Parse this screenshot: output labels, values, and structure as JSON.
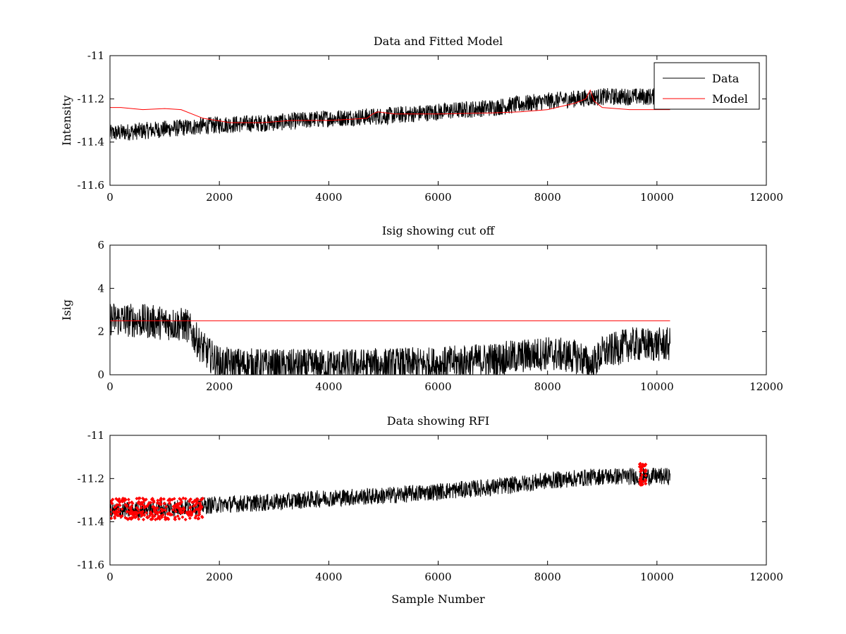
{
  "chart_data": [
    {
      "type": "line",
      "title": "Data and Fitted Model",
      "xlabel": "",
      "ylabel": "Intensity",
      "xlim": [
        0,
        12000
      ],
      "ylim": [
        -11.6,
        -11
      ],
      "xticks": [
        "0",
        "2000",
        "4000",
        "6000",
        "8000",
        "10000",
        "12000"
      ],
      "yticks": [
        "-11",
        "-11.2",
        "-11.4",
        "-11.6"
      ],
      "legend": {
        "location": "top-right",
        "entries": [
          "Data",
          "Model"
        ]
      },
      "series": [
        {
          "name": "Data",
          "color": "#000000",
          "style": "noisy-line",
          "x_range": [
            0,
            10240
          ],
          "trend_x": [
            0,
            1000,
            2000,
            3000,
            4000,
            5000,
            6000,
            7000,
            8000,
            9000,
            10240
          ],
          "trend_y": [
            -11.36,
            -11.34,
            -11.32,
            -11.31,
            -11.29,
            -11.28,
            -11.26,
            -11.24,
            -11.21,
            -11.19,
            -11.19
          ],
          "noise_amplitude": 0.04
        },
        {
          "name": "Model",
          "color": "#ff0000",
          "style": "line",
          "x": [
            0,
            200,
            600,
            1000,
            1300,
            1700,
            2200,
            2800,
            3300,
            4000,
            4700,
            4800,
            4900,
            5200,
            6000,
            7000,
            7500,
            8000,
            8500,
            8700,
            8780,
            8850,
            9000,
            9500,
            10240
          ],
          "y": [
            -11.24,
            -11.24,
            -11.25,
            -11.245,
            -11.25,
            -11.29,
            -11.31,
            -11.31,
            -11.3,
            -11.3,
            -11.29,
            -11.27,
            -11.26,
            -11.27,
            -11.27,
            -11.265,
            -11.26,
            -11.25,
            -11.22,
            -11.2,
            -11.16,
            -11.21,
            -11.24,
            -11.25,
            -11.25
          ]
        }
      ]
    },
    {
      "type": "line",
      "title": "Isig showing cut off",
      "xlabel": "",
      "ylabel": "Isig",
      "xlim": [
        0,
        12000
      ],
      "ylim": [
        0,
        6
      ],
      "xticks": [
        "0",
        "2000",
        "4000",
        "6000",
        "8000",
        "10000",
        "12000"
      ],
      "yticks": [
        "0",
        "2",
        "4",
        "6"
      ],
      "series": [
        {
          "name": "Isig",
          "color": "#000000",
          "style": "noisy-line",
          "x_range": [
            0,
            10240
          ],
          "trend_x": [
            0,
            500,
            1000,
            1400,
            1700,
            2000,
            3000,
            4000,
            5000,
            6000,
            7000,
            8000,
            8600,
            8800,
            9000,
            9500,
            10240
          ],
          "trend_y": [
            2.6,
            2.5,
            2.4,
            2.3,
            1.2,
            0.5,
            0.4,
            0.4,
            0.45,
            0.5,
            0.7,
            1.0,
            0.8,
            0.4,
            1.0,
            1.4,
            1.4
          ],
          "noise_amplitude": 0.8
        },
        {
          "name": "cut off",
          "color": "#ff0000",
          "style": "line",
          "x": [
            0,
            10240
          ],
          "y": [
            2.5,
            2.5
          ]
        }
      ]
    },
    {
      "type": "line",
      "title": "Data showing RFI",
      "xlabel": "Sample Number",
      "ylabel": "",
      "xlim": [
        0,
        12000
      ],
      "ylim": [
        -11.6,
        -11
      ],
      "xticks": [
        "0",
        "2000",
        "4000",
        "6000",
        "8000",
        "10000",
        "12000"
      ],
      "yticks": [
        "-11",
        "-11.2",
        "-11.4",
        "-11.6"
      ],
      "series": [
        {
          "name": "Data",
          "color": "#000000",
          "style": "noisy-line",
          "x_range": [
            0,
            10240
          ],
          "trend_x": [
            0,
            1000,
            2000,
            3000,
            4000,
            5000,
            6000,
            7000,
            8000,
            9000,
            10240
          ],
          "trend_y": [
            -11.35,
            -11.34,
            -11.32,
            -11.31,
            -11.29,
            -11.28,
            -11.26,
            -11.24,
            -11.21,
            -11.19,
            -11.19
          ],
          "noise_amplitude": 0.04
        },
        {
          "name": "RFI",
          "color": "#ff0000",
          "style": "markers",
          "regions": [
            {
              "x_range": [
                0,
                1700
              ],
              "y_center": -11.34,
              "spread": 0.05
            },
            {
              "x_range": [
                9680,
                9800
              ],
              "y_center": -11.18,
              "spread": 0.05
            }
          ]
        }
      ]
    }
  ]
}
